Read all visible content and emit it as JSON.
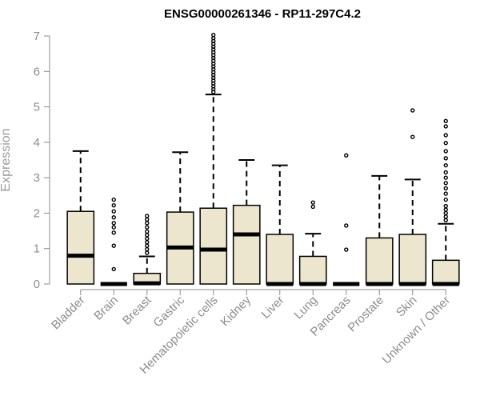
{
  "chart_data": {
    "type": "boxplot",
    "title": "ENSG00000261346 - RP11-297C4.2",
    "ylabel": "Expression",
    "xlabel": "",
    "ylim": [
      0,
      7
    ],
    "yticks": [
      0,
      1,
      2,
      3,
      4,
      5,
      6,
      7
    ],
    "grid": false,
    "box_color": "#EDE6CE",
    "categories": [
      "Bladder",
      "Brain",
      "Breast",
      "Gastric",
      "Hematopoietic cells",
      "Kidney",
      "Liver",
      "Lung",
      "Pancreas",
      "Prostate",
      "Skin",
      "Unknown / Other"
    ],
    "boxes": [
      {
        "category": "Bladder",
        "whisker_low": 0,
        "q1": 0,
        "median": 0.8,
        "q3": 2.05,
        "whisker_high": 3.75,
        "outliers": []
      },
      {
        "category": "Brain",
        "whisker_low": 0,
        "q1": 0,
        "median": 0,
        "q3": 0,
        "whisker_high": 0,
        "outliers": [
          0.42,
          1.08,
          1.45,
          1.6,
          1.72,
          1.88,
          2.05,
          2.22,
          2.38
        ]
      },
      {
        "category": "Breast",
        "whisker_low": 0,
        "q1": 0,
        "median": 0.02,
        "q3": 0.3,
        "whisker_high": 0.78,
        "outliers": [
          0.88,
          0.98,
          1.08,
          1.18,
          1.28,
          1.38,
          1.48,
          1.6,
          1.72,
          1.82,
          1.92
        ]
      },
      {
        "category": "Gastric",
        "whisker_low": 0,
        "q1": 0,
        "median": 1.03,
        "q3": 2.03,
        "whisker_high": 3.72,
        "outliers": []
      },
      {
        "category": "Hematopoietic cells",
        "whisker_low": 0,
        "q1": 0,
        "median": 0.97,
        "q3": 2.14,
        "whisker_high": 5.35,
        "outliers": [
          5.42,
          5.5,
          5.58,
          5.66,
          5.74,
          5.82,
          5.9,
          5.98,
          6.06,
          6.14,
          6.22,
          6.3,
          6.38,
          6.46,
          6.54,
          6.62,
          6.7,
          6.78,
          6.86,
          6.94,
          7.03
        ]
      },
      {
        "category": "Kidney",
        "whisker_low": 0,
        "q1": 0,
        "median": 1.4,
        "q3": 2.22,
        "whisker_high": 3.5,
        "outliers": []
      },
      {
        "category": "Liver",
        "whisker_low": 0,
        "q1": 0,
        "median": 0,
        "q3": 1.4,
        "whisker_high": 3.35,
        "outliers": []
      },
      {
        "category": "Lung",
        "whisker_low": 0,
        "q1": 0,
        "median": 0,
        "q3": 0.78,
        "whisker_high": 1.42,
        "outliers": [
          2.18,
          2.3
        ]
      },
      {
        "category": "Pancreas",
        "whisker_low": 0,
        "q1": 0,
        "median": 0,
        "q3": 0,
        "whisker_high": 0,
        "outliers": [
          0.97,
          1.65,
          3.63
        ]
      },
      {
        "category": "Prostate",
        "whisker_low": 0,
        "q1": 0,
        "median": 0,
        "q3": 1.3,
        "whisker_high": 3.05,
        "outliers": []
      },
      {
        "category": "Skin",
        "whisker_low": 0,
        "q1": 0,
        "median": 0,
        "q3": 1.4,
        "whisker_high": 2.95,
        "outliers": [
          4.15,
          4.9
        ]
      },
      {
        "category": "Unknown / Other",
        "whisker_low": 0,
        "q1": 0,
        "median": 0,
        "q3": 0.67,
        "whisker_high": 1.7,
        "outliers": [
          1.8,
          1.9,
          2.0,
          2.1,
          2.2,
          2.38,
          2.55,
          2.7,
          2.85,
          3.0,
          3.15,
          3.35,
          3.55,
          3.75,
          3.98,
          4.2,
          4.45,
          4.6
        ]
      }
    ]
  }
}
